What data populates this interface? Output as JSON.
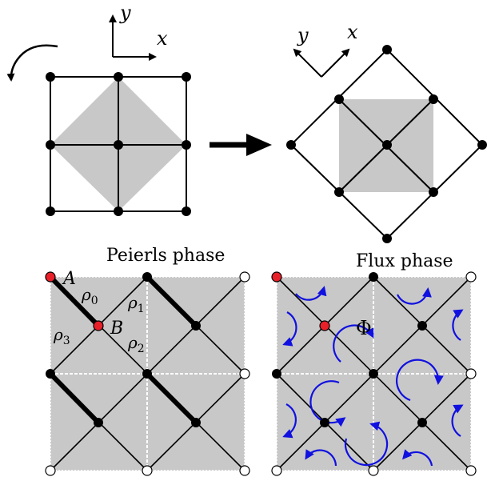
{
  "colors": {
    "shade": "#c8c8c8",
    "line": "#000000",
    "highlight": "#e8202a",
    "flux_arrow": "#1010e0",
    "open_site": "#ffffff"
  },
  "top_left": {
    "axis_x": "x",
    "axis_y": "y"
  },
  "top_right": {
    "axis_x": "x",
    "axis_y": "y"
  },
  "peierls": {
    "title": "Peierls phase",
    "site_a": "A",
    "site_b": "B",
    "rho0": "ρ0",
    "rho1": "ρ1",
    "rho2": "ρ2",
    "rho3": "ρ3"
  },
  "flux": {
    "title": "Flux phase",
    "phi": "Φ"
  },
  "icons": [
    "rotate-arrow-icon",
    "right-arrow-icon"
  ]
}
